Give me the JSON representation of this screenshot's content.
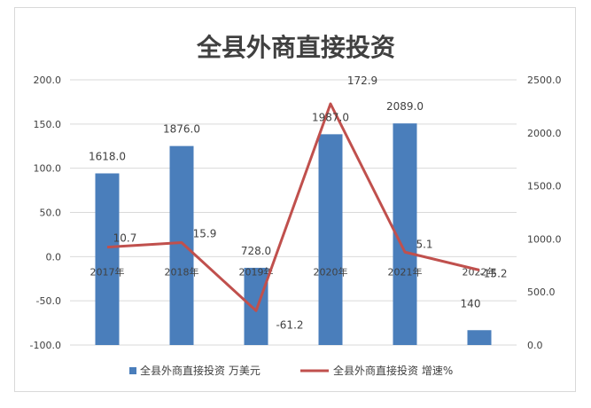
{
  "chart_data": {
    "type": "bar",
    "title": "全县外商直接投资",
    "categories": [
      "2017年",
      "2018年",
      "2019年",
      "2020年",
      "2021年",
      "2022年"
    ],
    "series": [
      {
        "name": "全县外商直接投资 万美元",
        "type": "bar",
        "axis": "right",
        "values": [
          1618.0,
          1876.0,
          728.0,
          1987.0,
          2089.0,
          140
        ],
        "labels": [
          "1618.0",
          "1876.0",
          "728.0",
          "1987.0",
          "2089.0",
          "140"
        ],
        "color": "#4a7ebb"
      },
      {
        "name": "全县外商直接投资 增速%",
        "type": "line",
        "axis": "left",
        "values": [
          10.7,
          15.9,
          -61.2,
          172.9,
          5.1,
          -15.2
        ],
        "labels": [
          "10.7",
          "15.9",
          "-61.2",
          "172.9",
          "5.1",
          "-15.2"
        ],
        "color": "#c0504d"
      }
    ],
    "y_left": {
      "min": -100,
      "max": 200,
      "step": 50,
      "ticks": [
        "200.0",
        "150.0",
        "100.0",
        "50.0",
        "0.0",
        "-50.0",
        "-100.0"
      ]
    },
    "y_right": {
      "min": 0,
      "max": 2500,
      "step": 500,
      "ticks": [
        "2500.0",
        "2000.0",
        "1500.0",
        "1000.0",
        "500.0",
        "0.0"
      ]
    },
    "grid": true,
    "legend_position": "bottom",
    "colors": {
      "bar": "#4a7ebb",
      "line": "#c0504d",
      "grid": "#d9d9d9",
      "text": "#404040"
    }
  }
}
